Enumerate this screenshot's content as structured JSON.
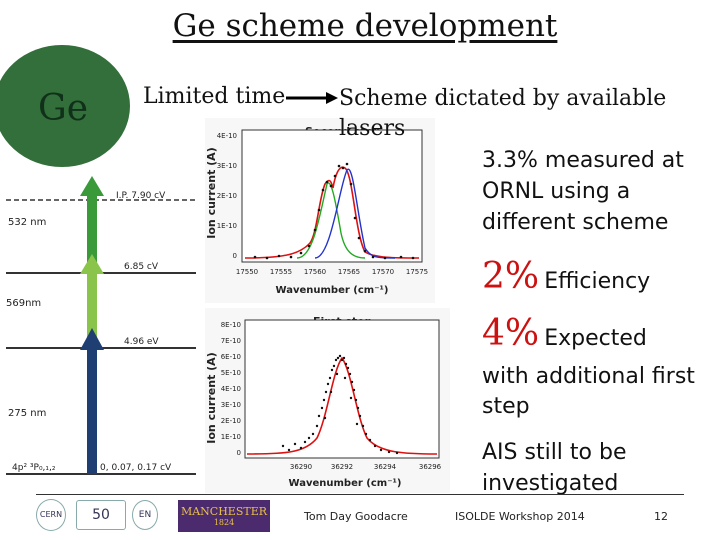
{
  "title": "Ge scheme development",
  "element_symbol": "Ge",
  "limited_time": "Limited time",
  "scheme_line1": "Scheme dictated by available",
  "scheme_line2": "lasers",
  "ornl_lines": [
    "3.3% measured at",
    "ORNL using a",
    "different scheme"
  ],
  "efficiency_pct": "2%",
  "efficiency_label": "Efficiency",
  "expected_pct": "4%",
  "expected_label": "Expected",
  "additional_lines": [
    "with additional first",
    "step"
  ],
  "ais_lines": [
    "AIS still to be",
    "investigated"
  ],
  "scheme": {
    "ip_label": "I.P. 7.90 cV",
    "level2": "6.85 cV",
    "level1": "4.96 eV",
    "ground": "0, 0.07, 0.17 cV",
    "ground_term": "4p² ³P₀,₁,₂",
    "laser3": "532 nm",
    "laser2": "569nm",
    "laser1": "275 nm"
  },
  "plot_top": {
    "title": "Second step",
    "ylabel": "Ion current (A)",
    "xlabel": "Wavenumber (cm⁻¹)",
    "yticks": [
      "4E-10",
      "3E-10",
      "2E-10",
      "1E-10",
      "0"
    ],
    "xticks": [
      "17550",
      "17555",
      "17560",
      "17565",
      "17570",
      "17575"
    ]
  },
  "plot_bottom": {
    "title": "First step",
    "ylabel": "Ion current (A)",
    "xlabel": "Wavenumber (cm⁻¹)",
    "yticks": [
      "8E-10",
      "7E-10",
      "6E-10",
      "5E-10",
      "4E-10",
      "3E-10",
      "2E-10",
      "1E-10",
      "0"
    ],
    "xticks": [
      "36290",
      "36292",
      "36294",
      "36296"
    ]
  },
  "footer": {
    "author": "Tom Day Goodacre",
    "event": "ISOLDE Workshop 2014",
    "page": "12",
    "logo_cern": "CERN",
    "logo_50": "50",
    "logo_en": "EN",
    "logo_manchester": "MANCHESTER",
    "logo_manchester_year": "1824"
  },
  "colors": {
    "ge_circle": "#326f3a",
    "laser3": "#3a9a3a",
    "laser2": "#8ac44a",
    "laser1": "#1f3f73",
    "fit_red": "#dd1111",
    "fit_green": "#22aa22",
    "fit_blue": "#2233cc"
  }
}
